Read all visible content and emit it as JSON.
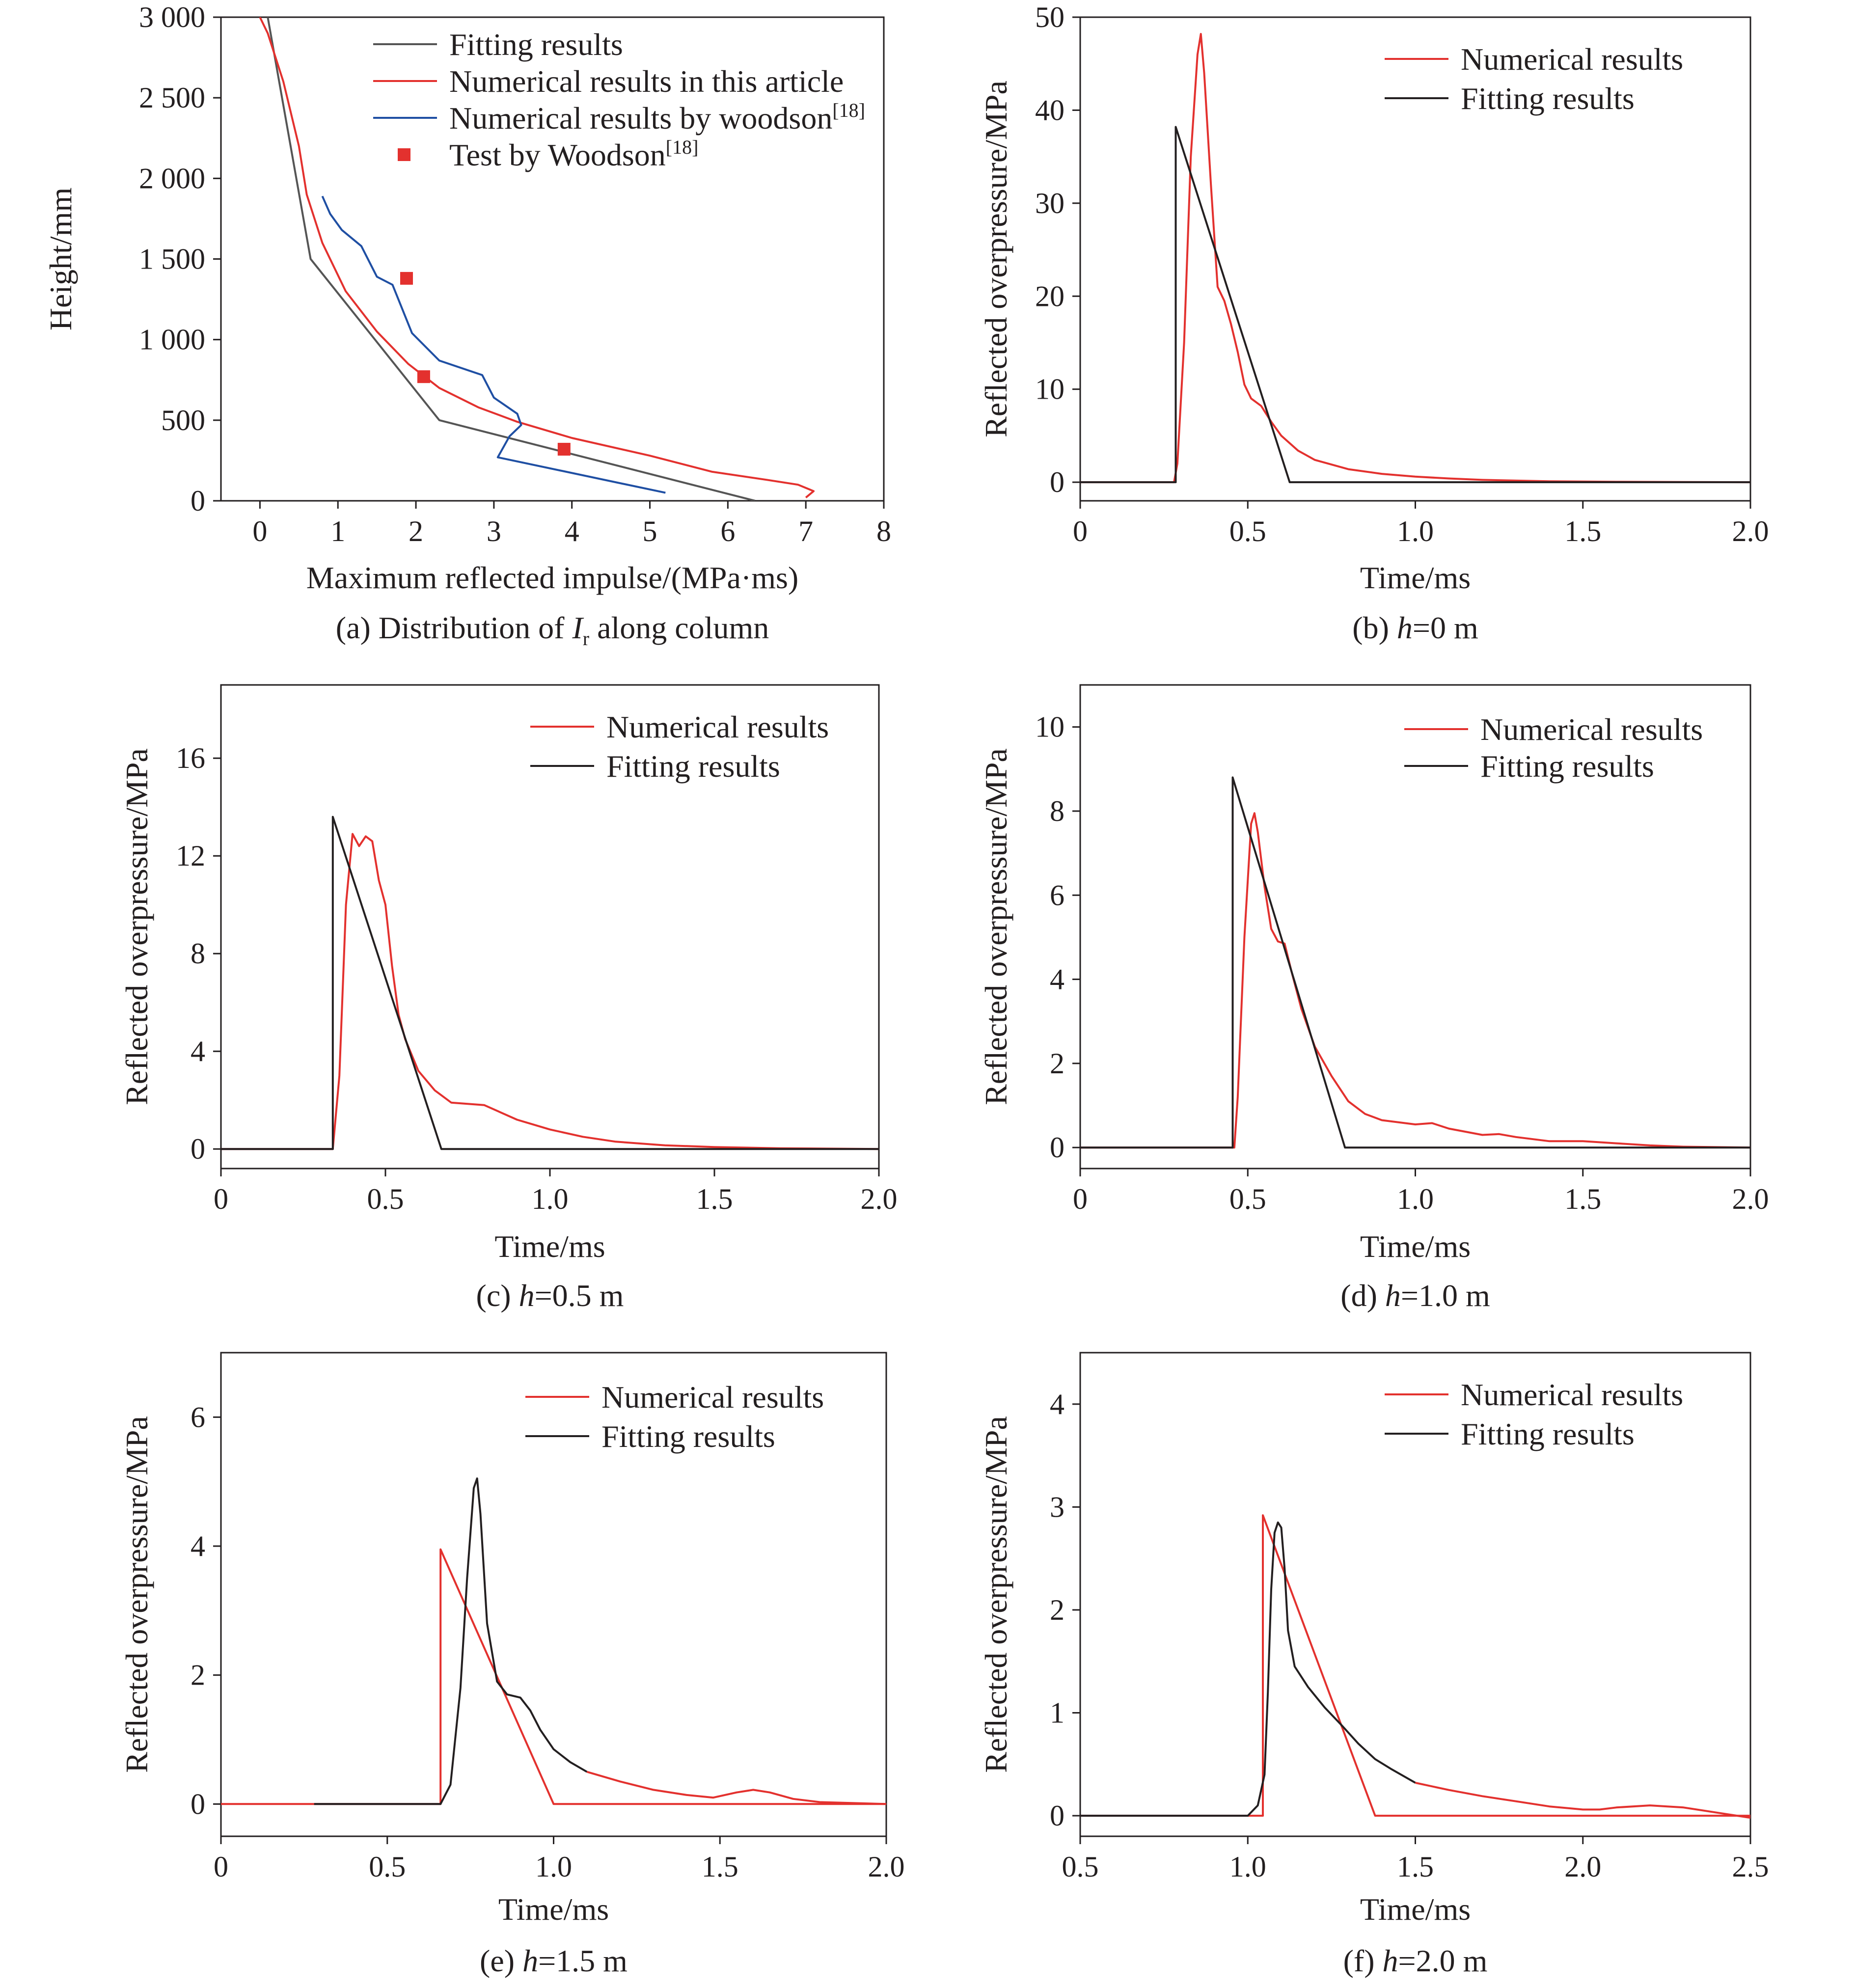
{
  "figure": {
    "colors": {
      "red": "#e3312e",
      "black": "#231f20",
      "gray": "#555555",
      "blue": "#1f4fa3"
    }
  },
  "chart_data": [
    {
      "id": "a",
      "type": "line",
      "caption": "(a) Distribution of Ir along column",
      "caption_main": "(a) Distribution of ",
      "caption_var": "I",
      "caption_sub": "r",
      "caption_tail": " along column",
      "xlabel": "Maximum reflected impulse/(MPa·ms)",
      "ylabel": "Height/mm",
      "xlim": [
        -0.5,
        8
      ],
      "ylim": [
        0,
        3000
      ],
      "xticks": [
        0,
        1,
        2,
        3,
        4,
        5,
        6,
        7,
        8
      ],
      "xtick_labels": [
        "0",
        "1",
        "2",
        "3",
        "4",
        "5",
        "6",
        "7",
        "8"
      ],
      "yticks": [
        0,
        500,
        1000,
        1500,
        2000,
        2500,
        3000
      ],
      "ytick_labels": [
        "0",
        "500",
        "1 000",
        "1 500",
        "2 000",
        "2 500",
        "3 000"
      ],
      "legend_position": "top-right",
      "series": [
        {
          "name": "Fitting results",
          "label": "Fitting results",
          "color": "#555555",
          "kind": "line",
          "x": [
            0.1,
            0.65,
            2.3,
            6.35
          ],
          "y": [
            3000,
            1500,
            500,
            0
          ]
        },
        {
          "name": "Numerical results in this article",
          "label": "Numerical results in this article",
          "color": "#e3312e",
          "kind": "line",
          "x": [
            0.0,
            0.1,
            0.3,
            0.5,
            0.6,
            0.8,
            1.1,
            1.5,
            1.9,
            2.3,
            2.8,
            3.3,
            4.0,
            5.0,
            5.8,
            6.5,
            6.9,
            7.1,
            7.0
          ],
          "y": [
            3000,
            2900,
            2600,
            2200,
            1900,
            1600,
            1300,
            1050,
            850,
            700,
            580,
            490,
            390,
            280,
            180,
            130,
            100,
            60,
            20
          ]
        },
        {
          "name": "Numerical results by woodson",
          "label": "Numerical results by woodson",
          "label_sup": "[18]",
          "color": "#1f4fa3",
          "kind": "line",
          "x": [
            0.8,
            0.9,
            1.05,
            1.3,
            1.5,
            1.7,
            1.85,
            1.95,
            2.3,
            2.85,
            3.0,
            3.3,
            3.35,
            3.2,
            3.05,
            5.2
          ],
          "y": [
            1890,
            1780,
            1680,
            1580,
            1390,
            1340,
            1160,
            1040,
            870,
            780,
            640,
            540,
            470,
            400,
            270,
            50
          ]
        },
        {
          "name": "Test by Woodson",
          "label": "Test by Woodson",
          "label_sup": "[18]",
          "color": "#e3312e",
          "kind": "marker",
          "x": [
            1.88,
            2.1,
            3.9
          ],
          "y": [
            1380,
            770,
            320
          ]
        }
      ]
    },
    {
      "id": "b",
      "type": "line",
      "caption": "(b) h=0 m",
      "caption_pre": "(b) ",
      "caption_var": "h",
      "caption_tail": "=0 m",
      "xlabel": "Time/ms",
      "ylabel": "Reflected overpressure/MPa",
      "xlim": [
        0,
        2
      ],
      "ylim": [
        -2,
        50
      ],
      "xticks": [
        0,
        0.5,
        1.0,
        1.5,
        2.0
      ],
      "xtick_labels": [
        "0",
        "0.5",
        "1.0",
        "1.5",
        "2.0"
      ],
      "yticks": [
        0,
        10,
        20,
        30,
        40,
        50
      ],
      "ytick_labels": [
        "0",
        "10",
        "20",
        "30",
        "40",
        "50"
      ],
      "legend_position": "top-right",
      "series": [
        {
          "name": "Numerical results",
          "label": "Numerical results",
          "color": "#e3312e",
          "x": [
            0,
            0.28,
            0.29,
            0.31,
            0.33,
            0.35,
            0.36,
            0.37,
            0.39,
            0.41,
            0.43,
            0.45,
            0.47,
            0.49,
            0.51,
            0.54,
            0.57,
            0.6,
            0.65,
            0.7,
            0.8,
            0.9,
            1.0,
            1.1,
            1.2,
            1.4,
            1.6,
            1.8,
            2.0
          ],
          "y": [
            0,
            0,
            2,
            15,
            35,
            46,
            48.2,
            44,
            32,
            21,
            19.5,
            17,
            14,
            10.5,
            9,
            8.2,
            6.5,
            5.0,
            3.4,
            2.4,
            1.4,
            0.9,
            0.6,
            0.4,
            0.25,
            0.1,
            0.05,
            0.02,
            0.0
          ]
        },
        {
          "name": "Fitting results",
          "label": "Fitting results",
          "color": "#231f20",
          "x": [
            0,
            0.285,
            0.285,
            0.625,
            2.0
          ],
          "y": [
            0,
            0,
            38.2,
            0,
            0
          ]
        }
      ]
    },
    {
      "id": "c",
      "type": "line",
      "caption": "(c) h=0.5 m",
      "caption_pre": "(c) ",
      "caption_var": "h",
      "caption_tail": "=0.5 m",
      "xlabel": "Time/ms",
      "ylabel": "Reflected overpressure/MPa",
      "xlim": [
        0,
        2
      ],
      "ylim": [
        -0.8,
        19
      ],
      "xticks": [
        0,
        0.5,
        1.0,
        1.5,
        2.0
      ],
      "xtick_labels": [
        "0",
        "0.5",
        "1.0",
        "1.5",
        "2.0"
      ],
      "yticks": [
        0,
        4,
        8,
        12,
        16
      ],
      "ytick_labels": [
        "0",
        "4",
        "8",
        "12",
        "16"
      ],
      "legend_position": "top-right",
      "series": [
        {
          "name": "Numerical results",
          "label": "Numerical results",
          "color": "#e3312e",
          "x": [
            0,
            0.34,
            0.36,
            0.38,
            0.4,
            0.42,
            0.44,
            0.46,
            0.48,
            0.5,
            0.52,
            0.54,
            0.56,
            0.6,
            0.65,
            0.7,
            0.75,
            0.8,
            0.9,
            1.0,
            1.1,
            1.2,
            1.35,
            1.5,
            1.7,
            2.0
          ],
          "y": [
            0,
            0,
            3,
            10,
            12.9,
            12.4,
            12.8,
            12.6,
            11,
            10,
            7.5,
            5.5,
            4.5,
            3.2,
            2.4,
            1.9,
            1.85,
            1.8,
            1.2,
            0.8,
            0.5,
            0.3,
            0.15,
            0.08,
            0.03,
            0.0
          ]
        },
        {
          "name": "Fitting results",
          "label": "Fitting results",
          "color": "#231f20",
          "x": [
            0,
            0.34,
            0.34,
            0.67,
            2.0
          ],
          "y": [
            0,
            0,
            13.6,
            0,
            0
          ]
        }
      ]
    },
    {
      "id": "d",
      "type": "line",
      "caption": "(d) h=1.0 m",
      "caption_pre": "(d) ",
      "caption_var": "h",
      "caption_tail": "=1.0 m",
      "xlabel": "Time/ms",
      "ylabel": "Reflected overpressure/MPa",
      "xlim": [
        0,
        2
      ],
      "ylim": [
        -0.5,
        11
      ],
      "xticks": [
        0,
        0.5,
        1.0,
        1.5,
        2.0
      ],
      "xtick_labels": [
        "0",
        "0.5",
        "1.0",
        "1.5",
        "2.0"
      ],
      "yticks": [
        0,
        2,
        4,
        6,
        8,
        10
      ],
      "ytick_labels": [
        "0",
        "2",
        "4",
        "6",
        "8",
        "10"
      ],
      "legend_position": "top-right",
      "series": [
        {
          "name": "Numerical results",
          "label": "Numerical results",
          "color": "#e3312e",
          "x": [
            0,
            0.46,
            0.47,
            0.49,
            0.51,
            0.52,
            0.53,
            0.55,
            0.57,
            0.59,
            0.61,
            0.63,
            0.66,
            0.7,
            0.75,
            0.8,
            0.85,
            0.9,
            1.0,
            1.05,
            1.1,
            1.2,
            1.25,
            1.3,
            1.4,
            1.5,
            1.6,
            1.7,
            1.8,
            2.0
          ],
          "y": [
            0,
            0,
            1.2,
            5,
            7.7,
            7.95,
            7.5,
            6.2,
            5.2,
            4.9,
            4.85,
            4.2,
            3.3,
            2.4,
            1.7,
            1.1,
            0.8,
            0.65,
            0.55,
            0.58,
            0.45,
            0.3,
            0.32,
            0.25,
            0.15,
            0.15,
            0.1,
            0.05,
            0.02,
            0.0
          ]
        },
        {
          "name": "Fitting results",
          "label": "Fitting results",
          "color": "#231f20",
          "x": [
            0,
            0.455,
            0.455,
            0.79,
            2.0
          ],
          "y": [
            0,
            0,
            8.8,
            0,
            0
          ]
        }
      ]
    },
    {
      "id": "e",
      "type": "line",
      "caption": "(e) h=1.5 m",
      "caption_pre": "(e) ",
      "caption_var": "h",
      "caption_tail": "=1.5 m",
      "xlabel": "Time/ms",
      "ylabel": "Reflected overpressure/MPa",
      "xlim": [
        0,
        2
      ],
      "ylim": [
        -0.5,
        7
      ],
      "xticks": [
        0,
        0.5,
        1.0,
        1.5,
        2.0
      ],
      "xtick_labels": [
        "0",
        "0.5",
        "1.0",
        "1.5",
        "2.0"
      ],
      "yticks": [
        0,
        2,
        4,
        6
      ],
      "ytick_labels": [
        "0",
        "2",
        "4",
        "6"
      ],
      "legend_position": "top-right",
      "series": [
        {
          "name": "Numerical results",
          "label": "Numerical results",
          "color": "#e3312e",
          "x": [
            0,
            0.66,
            0.66,
            1.0,
            2.0
          ],
          "y": [
            0,
            0,
            3.95,
            0,
            0
          ]
        },
        {
          "name": "Fitting results",
          "label": "Fitting results",
          "color": "#231f20",
          "x": [
            0.28,
            0.66,
            0.69,
            0.72,
            0.74,
            0.76,
            0.77,
            0.78,
            0.8,
            0.83,
            0.86,
            0.9,
            0.93,
            0.96,
            1.0,
            1.05,
            1.1
          ],
          "y": [
            0,
            0,
            0.3,
            1.8,
            3.5,
            4.9,
            5.05,
            4.5,
            2.8,
            1.9,
            1.7,
            1.65,
            1.45,
            1.15,
            0.85,
            0.65,
            0.5
          ]
        },
        {
          "name": "Numerical results tail",
          "label": "",
          "color": "#e3312e",
          "x": [
            1.1,
            1.2,
            1.3,
            1.4,
            1.48,
            1.55,
            1.6,
            1.65,
            1.72,
            1.8,
            2.0
          ],
          "y": [
            0.5,
            0.35,
            0.22,
            0.14,
            0.1,
            0.18,
            0.22,
            0.18,
            0.08,
            0.03,
            0.0
          ]
        }
      ]
    },
    {
      "id": "f",
      "type": "line",
      "caption": "(f) h=2.0 m",
      "caption_pre": "(f) ",
      "caption_var": "h",
      "caption_tail": "=2.0 m",
      "xlabel": "Time/ms",
      "ylabel": "Reflected overpressure/MPa",
      "xlim": [
        0.5,
        2.5
      ],
      "ylim": [
        -0.2,
        4.5
      ],
      "xticks": [
        0.5,
        1.0,
        1.5,
        2.0,
        2.5
      ],
      "xtick_labels": [
        "0.5",
        "1.0",
        "1.5",
        "2.0",
        "2.5"
      ],
      "yticks": [
        0,
        1,
        2,
        3,
        4
      ],
      "ytick_labels": [
        "0",
        "1",
        "2",
        "3",
        "4"
      ],
      "legend_position": "top-right",
      "series": [
        {
          "name": "Numerical results",
          "label": "Numerical results",
          "color": "#e3312e",
          "x": [
            0.5,
            1.045,
            1.045,
            1.38,
            2.5
          ],
          "y": [
            0,
            0,
            2.92,
            0,
            0
          ]
        },
        {
          "name": "Fitting results",
          "label": "Fitting results",
          "color": "#231f20",
          "x": [
            0.5,
            1.0,
            1.03,
            1.05,
            1.06,
            1.07,
            1.08,
            1.09,
            1.1,
            1.11,
            1.12,
            1.14,
            1.18,
            1.23,
            1.28,
            1.33,
            1.38,
            1.43,
            1.5
          ],
          "y": [
            0,
            0,
            0.1,
            0.4,
            1.2,
            2.2,
            2.75,
            2.85,
            2.8,
            2.4,
            1.8,
            1.45,
            1.25,
            1.05,
            0.88,
            0.7,
            0.55,
            0.45,
            0.32
          ]
        },
        {
          "name": "Numerical results tail",
          "label": "",
          "color": "#e3312e",
          "x": [
            1.5,
            1.6,
            1.7,
            1.8,
            1.9,
            2.0,
            2.05,
            2.1,
            2.2,
            2.3,
            2.4,
            2.5
          ],
          "y": [
            0.32,
            0.25,
            0.19,
            0.14,
            0.09,
            0.06,
            0.06,
            0.08,
            0.1,
            0.08,
            0.03,
            -0.02
          ]
        }
      ]
    }
  ]
}
